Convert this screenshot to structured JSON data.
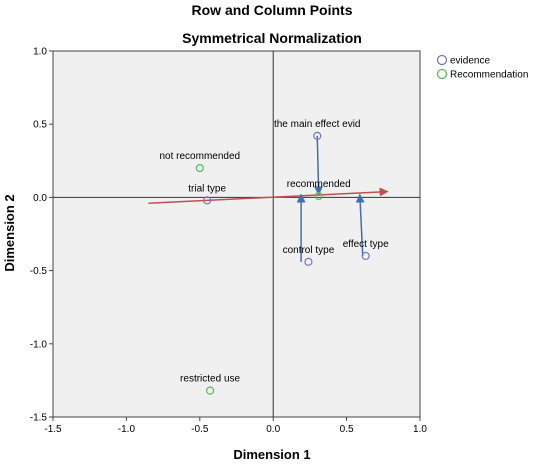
{
  "chart_data": {
    "type": "scatter",
    "title": "Row and Column Points",
    "subtitle": "Symmetrical Normalization",
    "xlabel": "Dimension 1",
    "ylabel": "Dimension 2",
    "xlim": [
      -1.5,
      1.0
    ],
    "ylim": [
      -1.5,
      1.0
    ],
    "xticks": [
      -1.5,
      -1.0,
      -0.5,
      0.0,
      0.5,
      1.0
    ],
    "yticks": [
      -1.5,
      -1.0,
      -0.5,
      0.0,
      0.5,
      1.0
    ],
    "xtick_labels": [
      "-1.5",
      "-1.0",
      "-0.5",
      "0.0",
      "0.5",
      "1.0"
    ],
    "ytick_labels": [
      "-1.5",
      "-1.0",
      "-0.5",
      "0.0",
      "0.5",
      "1.0"
    ],
    "reference_lines": {
      "x": 0.0,
      "y": 0.0
    },
    "grid": false,
    "legend_position": "top-right outside",
    "series": [
      {
        "name": "evidence",
        "color": "#7777bb",
        "points": [
          {
            "label": "the main effect evid",
            "x": 0.3,
            "y": 0.42
          },
          {
            "label": "trial type",
            "x": -0.45,
            "y": -0.02
          },
          {
            "label": "control type",
            "x": 0.24,
            "y": -0.44
          },
          {
            "label": "effect type",
            "x": 0.63,
            "y": -0.4
          }
        ]
      },
      {
        "name": "Recommendation",
        "color": "#55bb55",
        "points": [
          {
            "label": "not recommended",
            "x": -0.5,
            "y": 0.2
          },
          {
            "label": "recommended",
            "x": 0.31,
            "y": 0.01
          },
          {
            "label": "restricted use",
            "x": -0.43,
            "y": -1.32
          }
        ]
      }
    ],
    "arrows": [
      {
        "color": "#c0504d",
        "from": [
          -0.85,
          -0.04
        ],
        "to": [
          0.78,
          0.04
        ]
      },
      {
        "color": "#3f6fb5",
        "from": [
          0.3,
          0.42
        ],
        "to": [
          0.31,
          0.02
        ]
      },
      {
        "color": "#3f6fb5",
        "from": [
          0.19,
          -0.44
        ],
        "to": [
          0.19,
          0.02
        ]
      },
      {
        "color": "#3f6fb5",
        "from": [
          0.61,
          -0.4
        ],
        "to": [
          0.59,
          0.02
        ]
      }
    ]
  }
}
